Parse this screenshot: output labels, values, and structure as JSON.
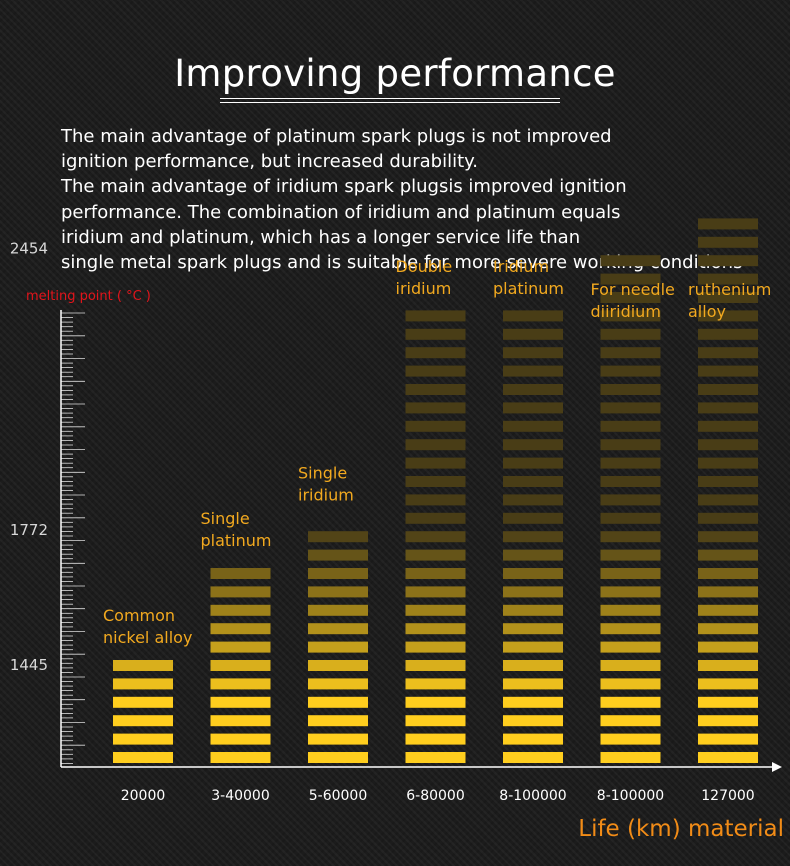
{
  "title": "Improving performance",
  "description": [
    "The main advantage of platinum spark plugs is not improved",
    "ignition performance, but increased durability.",
    "The main advantage of iridium spark plugsis improved ignition",
    "performance. The combination of iridium and platinum equals",
    "iridium and platinum, which has a longer service life than",
    "single metal spark plugs and is suitable for more severe working conditions"
  ],
  "colors": {
    "background": "#1c1c1c",
    "bar_bright": "#ffce1e",
    "bar_dim": "#3f3516",
    "label": "#f2a91f",
    "ylabel": "#e3141b",
    "xlabel": "#f28c17",
    "axis": "#ffffff"
  },
  "chart_data": {
    "type": "bar",
    "title": "Improving performance",
    "ylabel": "melting point ( °C )",
    "xlabel": "Life (km) material",
    "yticks": [
      1445,
      1772,
      2454
    ],
    "categories": [
      "20000",
      "3-40000",
      "5-60000",
      "6-80000",
      "8-100000",
      "8-100000",
      "127000"
    ],
    "materials": [
      [
        "Common",
        "nickel alloy"
      ],
      [
        "Single",
        "platinum"
      ],
      [
        "Single",
        "iridium"
      ],
      [
        "Double",
        "iridium"
      ],
      [
        "Iridium",
        "platinum"
      ],
      [
        "For needle",
        "diiridium"
      ],
      [
        "ruthenium",
        "alloy"
      ]
    ],
    "values": [
      1455,
      1690,
      1800,
      2300,
      2300,
      2470,
      2530
    ],
    "grid": false,
    "legend": "none"
  }
}
